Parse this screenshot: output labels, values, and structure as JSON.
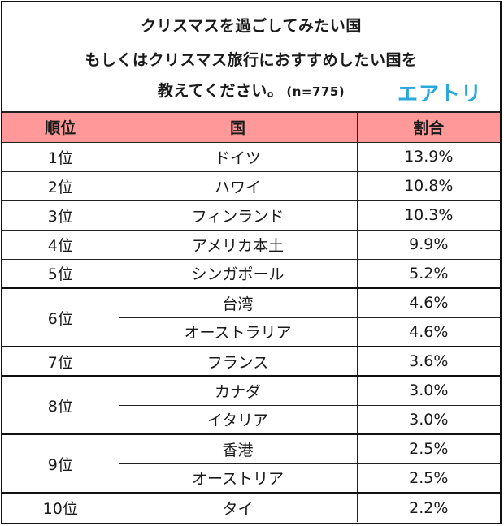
{
  "title": {
    "line1": "クリスマスを過ごしてみたい国",
    "line2": "もしくはクリスマス旅行におすすめしたい国を",
    "line3": "教えてください。",
    "sample": "(n=775)"
  },
  "logo": {
    "text": "エアトリ",
    "color": "#2aa7dc"
  },
  "header_color": "#ff9999",
  "table": {
    "headers": [
      "順位",
      "国",
      "割合"
    ],
    "rows": [
      {
        "rank": "1位",
        "country": "ドイツ",
        "share": "13.9%"
      },
      {
        "rank": "2位",
        "country": "ハワイ",
        "share": "10.8%"
      },
      {
        "rank": "3位",
        "country": "フィンランド",
        "share": "10.3%"
      },
      {
        "rank": "4位",
        "country": "アメリカ本土",
        "share": "9.9%"
      },
      {
        "rank": "5位",
        "country": "シンガポール",
        "share": "5.2%"
      },
      {
        "rank": "6位",
        "country": "台湾",
        "share": "4.6%"
      },
      {
        "rank": "6位",
        "country": "オーストラリア",
        "share": "4.6%"
      },
      {
        "rank": "7位",
        "country": "フランス",
        "share": "3.6%"
      },
      {
        "rank": "8位",
        "country": "カナダ",
        "share": "3.0%"
      },
      {
        "rank": "8位",
        "country": "イタリア",
        "share": "3.0%"
      },
      {
        "rank": "9位",
        "country": "香港",
        "share": "2.5%"
      },
      {
        "rank": "9位",
        "country": "オーストリア",
        "share": "2.5%"
      },
      {
        "rank": "10位",
        "country": "タイ",
        "share": "2.2%"
      }
    ]
  },
  "chart_data": {
    "type": "table",
    "title": "クリスマスを過ごしてみたい国 もしくはクリスマス旅行におすすめしたい国を教えてください。(n=775)",
    "columns": [
      "順位",
      "国",
      "割合"
    ],
    "categories": [
      "ドイツ",
      "ハワイ",
      "フィンランド",
      "アメリカ本土",
      "シンガポール",
      "台湾",
      "オーストラリア",
      "フランス",
      "カナダ",
      "イタリア",
      "香港",
      "オーストリア",
      "タイ"
    ],
    "ranks": [
      1,
      2,
      3,
      4,
      5,
      6,
      6,
      7,
      8,
      8,
      9,
      9,
      10
    ],
    "values": [
      13.9,
      10.8,
      10.3,
      9.9,
      5.2,
      4.6,
      4.6,
      3.6,
      3.0,
      3.0,
      2.5,
      2.5,
      2.2
    ],
    "unit": "%",
    "n": 775
  }
}
